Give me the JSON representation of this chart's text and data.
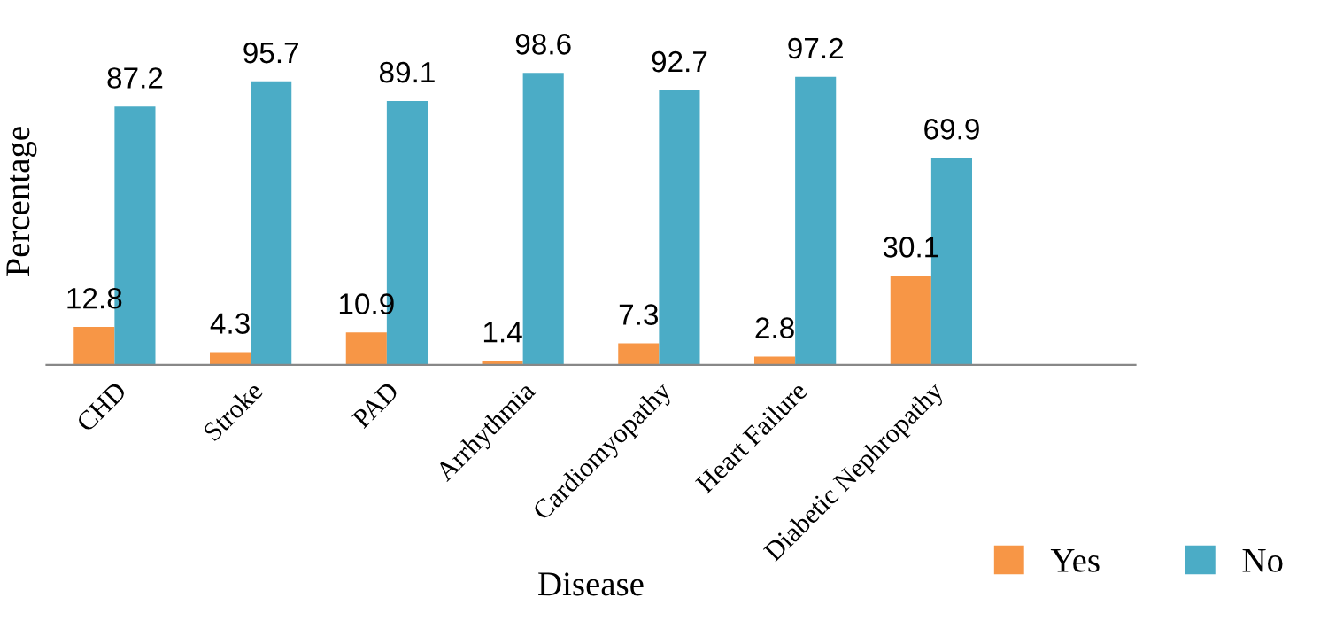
{
  "chart_data": {
    "type": "bar",
    "xlabel": "Disease",
    "ylabel": "Percentage",
    "categories": [
      "CHD",
      "Stroke",
      "PAD",
      "Arrhythmia",
      "Cardiomyopathy",
      "Heart Failure",
      "Diabetic Nephropathy",
      null
    ],
    "series": [
      {
        "name": "Yes",
        "color": "#f79646",
        "values": [
          12.8,
          4.3,
          10.9,
          1.4,
          7.3,
          2.8,
          30.1,
          null
        ]
      },
      {
        "name": "No",
        "color": "#4bacc6",
        "values": [
          87.2,
          95.7,
          89.1,
          98.6,
          92.7,
          97.2,
          69.9,
          null
        ]
      }
    ],
    "data_labels": true,
    "legend": "bottom right",
    "grid": false
  }
}
